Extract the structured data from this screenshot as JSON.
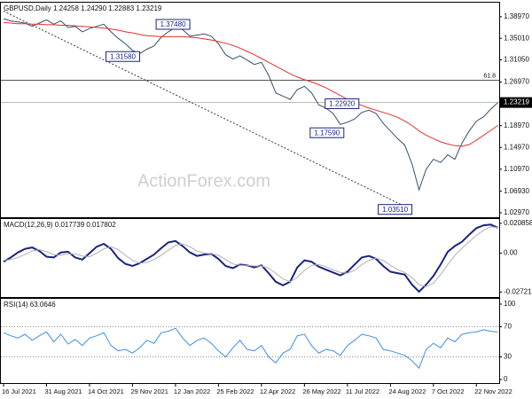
{
  "chart_data": [
    {
      "type": "line",
      "title": "GBPUSD,Daily  1.24258 1.24290 1.22883 1.23219",
      "watermark": "ActionForex.com",
      "categories": [
        "16 Jul 2021",
        null,
        null,
        null,
        null,
        null,
        "31 Aug 2021",
        null,
        null,
        null,
        null,
        null,
        "14 Oct 2021",
        null,
        null,
        null,
        null,
        null,
        "29 Nov 2021",
        null,
        null,
        null,
        null,
        null,
        "12 Jan 2022",
        null,
        null,
        null,
        null,
        null,
        "25 Feb 2022",
        null,
        null,
        null,
        null,
        null,
        "12 Apr 2022",
        null,
        null,
        null,
        null,
        null,
        "26 May 2022",
        null,
        null,
        null,
        null,
        null,
        "11 Jul 2022",
        null,
        null,
        null,
        null,
        null,
        "24 Aug 2022",
        null,
        null,
        null,
        null,
        null,
        "7 Oct 2022",
        null,
        null,
        null,
        null,
        null,
        "22 Nov 2022",
        null,
        null,
        null
      ],
      "series": [
        {
          "color": "#34506e",
          "values": [
            1.386,
            1.382,
            1.38,
            1.378,
            1.372,
            1.378,
            1.384,
            1.376,
            1.382,
            1.37,
            1.372,
            1.362,
            1.368,
            1.372,
            1.376,
            1.362,
            1.35,
            1.34,
            1.328,
            1.322,
            1.33,
            1.336,
            1.352,
            1.362,
            1.37,
            1.366,
            1.354,
            1.356,
            1.358,
            1.354,
            1.34,
            1.32,
            1.312,
            1.318,
            1.31,
            1.302,
            1.306,
            1.282,
            1.25,
            1.244,
            1.238,
            1.256,
            1.262,
            1.25,
            1.228,
            1.222,
            1.212,
            1.192,
            1.196,
            1.202,
            1.214,
            1.218,
            1.212,
            1.194,
            1.18,
            1.166,
            1.154,
            1.12,
            1.072,
            1.11,
            1.128,
            1.122,
            1.136,
            1.128,
            1.158,
            1.18,
            1.198,
            1.206,
            1.22,
            1.232
          ]
        },
        {
          "color": "#e53030",
          "values": [
            1.379,
            1.378,
            1.377,
            1.377,
            1.376,
            1.376,
            1.375,
            1.375,
            1.374,
            1.374,
            1.373,
            1.372,
            1.371,
            1.37,
            1.369,
            1.367,
            1.365,
            1.362,
            1.36,
            1.357,
            1.355,
            1.354,
            1.353,
            1.353,
            1.353,
            1.353,
            1.352,
            1.351,
            1.349,
            1.347,
            1.344,
            1.341,
            1.337,
            1.332,
            1.326,
            1.32,
            1.313,
            1.306,
            1.299,
            1.292,
            1.285,
            1.279,
            1.274,
            1.27,
            1.265,
            1.259,
            1.252,
            1.245,
            1.238,
            1.232,
            1.227,
            1.222,
            1.218,
            1.214,
            1.21,
            1.205,
            1.198,
            1.19,
            1.18,
            1.172,
            1.166,
            1.16,
            1.156,
            1.153,
            1.152,
            1.155,
            1.163,
            1.172,
            1.181,
            1.19
          ]
        }
      ],
      "ylim": [
        1.0216,
        1.4155
      ],
      "yticks": [
        {
          "value": 1.3897,
          "label": "1.38970"
        },
        {
          "value": 1.3501,
          "label": "1.35010"
        },
        {
          "value": 1.3105,
          "label": "1.31050"
        },
        {
          "value": 1.2697,
          "label": "1.26970"
        },
        {
          "value": 1.1897,
          "label": "1.18970"
        },
        {
          "value": 1.1497,
          "label": "1.14970"
        },
        {
          "value": 1.1097,
          "label": "1.10970"
        },
        {
          "value": 1.0693,
          "label": "1.06930"
        },
        {
          "value": 1.0297,
          "label": "1.02970"
        }
      ],
      "last": {
        "value": 1.23219,
        "label": "1.23219"
      },
      "level": {
        "value": 1.273,
        "label": "61.8"
      },
      "trendline": {
        "x": [
          0,
          57
        ],
        "y": [
          1.4,
          1.0351
        ]
      },
      "annotations": [
        {
          "value": 1.3748,
          "label": "1.37480",
          "x": 26
        },
        {
          "value": 1.3158,
          "label": "1.31580",
          "x": 19
        },
        {
          "value": 1.2292,
          "label": "1.22920",
          "x": 49.6
        },
        {
          "value": 1.1759,
          "label": "1.17590",
          "x": 47.5
        },
        {
          "value": 1.0351,
          "label": "1.03510",
          "x": 57
        }
      ]
    },
    {
      "type": "line",
      "title": "MACD(12,26,9) 0.017739 0.017802",
      "series": [
        {
          "color": "#1a237e",
          "values": [
            -0.006,
            -0.003,
            0.0005,
            0.003,
            0.004,
            0.0015,
            -0.0025,
            -0.003,
            0.0005,
            0.001,
            -0.003,
            -0.0045,
            0.0,
            0.0045,
            0.0065,
            0.003,
            -0.0035,
            -0.0075,
            -0.009,
            -0.007,
            -0.004,
            -0.001,
            0.0035,
            0.0075,
            0.0085,
            0.005,
            0.0005,
            -0.002,
            -0.001,
            -0.0005,
            -0.004,
            -0.009,
            -0.0105,
            -0.008,
            -0.0085,
            -0.01,
            -0.0085,
            -0.014,
            -0.02,
            -0.0225,
            -0.02,
            -0.01,
            -0.005,
            -0.006,
            -0.0095,
            -0.0115,
            -0.0135,
            -0.0155,
            -0.013,
            -0.008,
            -0.003,
            -0.002,
            -0.004,
            -0.009,
            -0.013,
            -0.014,
            -0.015,
            -0.022,
            -0.027,
            -0.022,
            -0.016,
            -0.008,
            0.001,
            0.005,
            0.008,
            0.013,
            0.0175,
            0.0195,
            0.02,
            0.017739
          ]
        },
        {
          "color": "#b0b0b0",
          "values": [
            -0.005,
            -0.0045,
            -0.003,
            -0.001,
            0.0015,
            0.0025,
            0.001,
            -0.001,
            -0.0015,
            -0.0005,
            -0.0005,
            -0.002,
            -0.0025,
            0.0,
            0.003,
            0.0045,
            0.0025,
            -0.0015,
            -0.005,
            -0.007,
            -0.0065,
            -0.0045,
            -0.0015,
            0.002,
            0.0055,
            0.0065,
            0.0045,
            0.0015,
            0.0,
            -0.0005,
            -0.0015,
            -0.0045,
            -0.0075,
            -0.0085,
            -0.0085,
            -0.009,
            -0.009,
            -0.0105,
            -0.014,
            -0.018,
            -0.02,
            -0.017,
            -0.012,
            -0.0085,
            -0.008,
            -0.0095,
            -0.0115,
            -0.0135,
            -0.014,
            -0.012,
            -0.008,
            -0.005,
            -0.0035,
            -0.005,
            -0.0085,
            -0.0115,
            -0.0135,
            -0.017,
            -0.022,
            -0.0235,
            -0.021,
            -0.015,
            -0.008,
            -0.0015,
            0.0035,
            0.008,
            0.0125,
            0.016,
            0.0185,
            0.017802
          ]
        }
      ],
      "ylim": [
        -0.0307,
        0.0239
      ],
      "yticks": [
        0.020858,
        {
          "value": 0,
          "label": "0.00"
        },
        -0.027213
      ]
    },
    {
      "type": "line",
      "title": "RSI(14) 63.0646",
      "series": [
        {
          "color": "#3d8fe0",
          "values": [
            62,
            58,
            55,
            60,
            52,
            58,
            63,
            50,
            60,
            47,
            53,
            45,
            55,
            58,
            62,
            45,
            38,
            40,
            35,
            42,
            52,
            48,
            62,
            64,
            68,
            55,
            45,
            52,
            55,
            48,
            38,
            30,
            42,
            52,
            40,
            38,
            45,
            30,
            22,
            35,
            40,
            58,
            60,
            45,
            35,
            40,
            38,
            32,
            45,
            52,
            60,
            58,
            55,
            40,
            38,
            35,
            32,
            25,
            15,
            40,
            48,
            42,
            55,
            50,
            60,
            62,
            63,
            66,
            64,
            63.0646
          ]
        }
      ],
      "ylim": [
        -4.7,
        107
      ],
      "yticks": [
        100,
        70,
        30,
        0
      ],
      "dotted": [
        70,
        30
      ]
    }
  ]
}
